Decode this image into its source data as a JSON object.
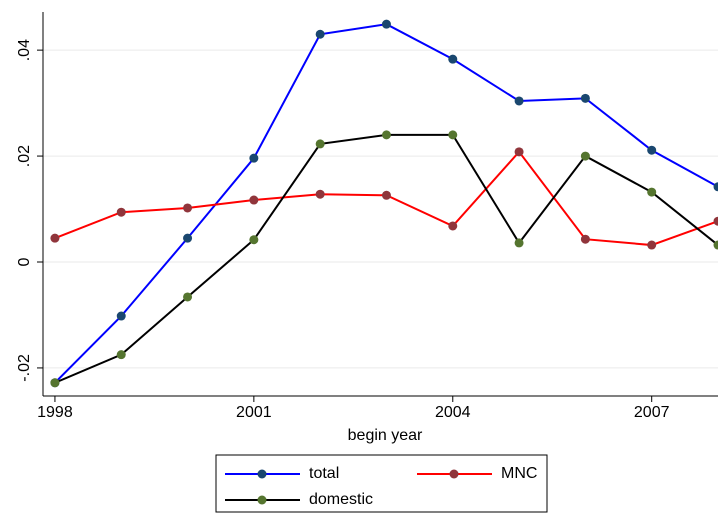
{
  "chart_data": {
    "type": "line",
    "xlabel": "begin year",
    "x": [
      1998,
      1999,
      2000,
      2001,
      2002,
      2003,
      2004,
      2005,
      2006,
      2007,
      2008
    ],
    "series": [
      {
        "name": "total",
        "color": "#0000ff",
        "marker_color": "#1a476f",
        "values": [
          -0.0228,
          -0.0102,
          0.0045,
          0.0196,
          0.043,
          0.0449,
          0.0383,
          0.0304,
          0.0309,
          0.0211,
          0.0142
        ]
      },
      {
        "name": "MNC",
        "color": "#ff0000",
        "marker_color": "#90353b",
        "values": [
          0.0045,
          0.0094,
          0.0102,
          0.0117,
          0.0128,
          0.0126,
          0.0068,
          0.0208,
          0.0043,
          0.0032,
          0.0077
        ]
      },
      {
        "name": "domestic",
        "color": "#000000",
        "marker_color": "#55752f",
        "values": [
          -0.0228,
          -0.0175,
          -0.0066,
          0.0042,
          0.0223,
          0.024,
          0.024,
          0.0036,
          0.02,
          0.0132,
          0.0032
        ]
      }
    ],
    "xlim": [
      1997.82,
      2008
    ],
    "xticks": [
      1998,
      2001,
      2004,
      2007
    ],
    "ylim": [
      -0.0253,
      0.0472
    ],
    "yticks": [
      {
        "value": -0.02,
        "label": "-.02"
      },
      0,
      {
        "value": 0.02,
        "label": ".02"
      },
      {
        "value": 0.04,
        "label": ".04"
      }
    ],
    "grid": true
  }
}
